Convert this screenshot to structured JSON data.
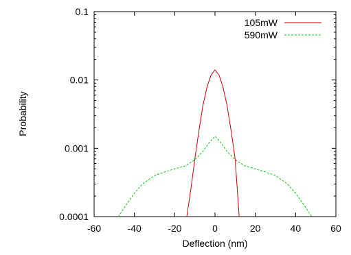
{
  "chart_data": {
    "type": "line",
    "title": "",
    "xlabel": "Deflection (nm)",
    "ylabel": "Probability",
    "xlim": [
      -60,
      60
    ],
    "ylim": [
      0.0001,
      0.1
    ],
    "yscale": "log",
    "grid": false,
    "legend_position": "top-right",
    "xticks": [
      -60,
      -40,
      -20,
      0,
      20,
      40,
      60
    ],
    "xtick_labels": [
      "-60",
      "-40",
      "-20",
      "0",
      "20",
      "40",
      "60"
    ],
    "yticks": [
      0.0001,
      0.001,
      0.01,
      0.1
    ],
    "ytick_labels": [
      "0.0001",
      "0.001",
      "0.01",
      "0.1"
    ],
    "series": [
      {
        "name": "105mW",
        "color": "#cc0000",
        "dash": "solid",
        "x": [
          -14,
          -12,
          -10,
          -8,
          -6,
          -4,
          -2,
          0,
          2,
          4,
          6,
          8,
          10,
          12
        ],
        "y": [
          0.0001,
          0.00025,
          0.0007,
          0.0018,
          0.0042,
          0.0078,
          0.0118,
          0.014,
          0.0118,
          0.0078,
          0.0042,
          0.0018,
          0.0007,
          0.0001
        ]
      },
      {
        "name": "590mW",
        "color": "#00cc00",
        "dash": "dashed",
        "x": [
          -48,
          -44,
          -40,
          -36,
          -30,
          -25,
          -20,
          -15,
          -10,
          -6,
          -3,
          0,
          3,
          6,
          10,
          15,
          20,
          25,
          30,
          36,
          40,
          44,
          48
        ],
        "y": [
          0.0001,
          0.00015,
          0.00022,
          0.0003,
          0.0004,
          0.00045,
          0.0005,
          0.00055,
          0.00068,
          0.0009,
          0.0012,
          0.0015,
          0.0012,
          0.0009,
          0.00068,
          0.00055,
          0.0005,
          0.00045,
          0.0004,
          0.0003,
          0.00022,
          0.00015,
          0.0001
        ]
      }
    ]
  }
}
